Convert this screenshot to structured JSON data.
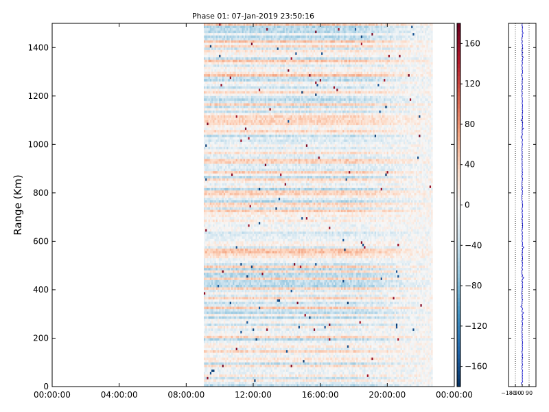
{
  "chart_data": [
    {
      "type": "heatmap",
      "title": "Phase 01: 07-Jan-2019 23:50:16",
      "ylabel": "Range (Km)",
      "xlabel": "",
      "x_range": [
        "00:00:00",
        "00:00:00"
      ],
      "x_ticks": [
        "00:00:00",
        "04:00:00",
        "08:00:00",
        "12:00:00",
        "16:00:00",
        "20:00:00",
        "00:00:00"
      ],
      "x_tick_hours": [
        0,
        4,
        8,
        12,
        16,
        20,
        24
      ],
      "ylim": [
        0,
        1500
      ],
      "y_ticks": [
        0,
        200,
        400,
        600,
        800,
        1000,
        1200,
        1400
      ],
      "data_start_hour": 9.05,
      "data_end_hour": 22.7,
      "colormap": "RdBu_r",
      "colorbar": {
        "range": [
          -180,
          180
        ],
        "ticks": [
          -160,
          -120,
          -80,
          -40,
          0,
          40,
          80,
          120,
          160
        ],
        "colors": {
          "low": "#053061",
          "mid": "#f7f7f7",
          "high": "#67001f"
        }
      }
    },
    {
      "type": "line",
      "series": [
        {
          "color": "#0000cc"
        }
      ],
      "xlim": [
        -180,
        180
      ],
      "x_ticks": [
        -180,
        -90,
        0,
        90
      ],
      "x_tick_labels": [
        "−180",
        "−90",
        "0",
        "90"
      ],
      "ylim": [
        0,
        1500
      ],
      "grid": "vertical dotted at -90, 0, 90"
    }
  ]
}
